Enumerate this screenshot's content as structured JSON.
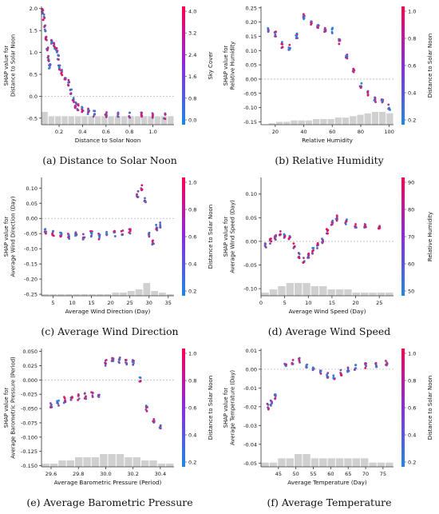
{
  "colors": {
    "low": "#1e88e5",
    "high": "#ff0052",
    "hist": "#d0d0d0",
    "axis": "#333333",
    "text": "#111111"
  },
  "figure_captions": [
    "(a) Distance to Solar Noon",
    "(b) Relative Humidity",
    "(c) Average Wind Direction",
    "(d) Average Wind Speed",
    "(e) Average Barometric Pressure",
    "(f) Average Temperature"
  ],
  "chart_data": [
    {
      "type": "scatter",
      "caption": "(a) Distance to Solar Noon",
      "xlabel": "Distance to Solar Noon",
      "ylabel": [
        "SHAP value for",
        "Distance to Solar Noon"
      ],
      "colorbar_label": "Sky Cover",
      "colorbar_ticks": [
        "0.0",
        "0.8",
        "1.6",
        "2.4",
        "3.2",
        "4.0"
      ],
      "xlim": [
        0.05,
        1.18
      ],
      "ylim": [
        -0.65,
        2.05
      ],
      "xticks": [
        0.2,
        0.4,
        0.6,
        0.8,
        1.0
      ],
      "xtick_labels": [
        "0.2",
        "0.4",
        "0.6",
        "0.8",
        "1.0"
      ],
      "yticks": [
        -0.5,
        0.0,
        0.5,
        1.0,
        1.5,
        2.0
      ],
      "ytick_labels": [
        "-0.5",
        "0.0",
        "0.5",
        "1.0",
        "1.5",
        "2.0"
      ],
      "series_points": [
        [
          0.06,
          1.95
        ],
        [
          0.07,
          1.8
        ],
        [
          0.08,
          1.55
        ],
        [
          0.09,
          1.3
        ],
        [
          0.1,
          1.05
        ],
        [
          0.11,
          0.85
        ],
        [
          0.12,
          0.7
        ],
        [
          0.14,
          1.25
        ],
        [
          0.16,
          1.15
        ],
        [
          0.18,
          1.05
        ],
        [
          0.19,
          0.9
        ],
        [
          0.2,
          0.65
        ],
        [
          0.22,
          0.55
        ],
        [
          0.25,
          0.45
        ],
        [
          0.28,
          0.3
        ],
        [
          0.3,
          0.1
        ],
        [
          0.32,
          -0.1
        ],
        [
          0.34,
          -0.2
        ],
        [
          0.36,
          -0.25
        ],
        [
          0.4,
          -0.3
        ],
        [
          0.45,
          -0.35
        ],
        [
          0.5,
          -0.4
        ],
        [
          0.6,
          -0.42
        ],
        [
          0.7,
          -0.43
        ],
        [
          0.8,
          -0.44
        ],
        [
          0.9,
          -0.44
        ],
        [
          1.0,
          -0.45
        ],
        [
          1.1,
          -0.45
        ]
      ],
      "hist": [
        3,
        2,
        2,
        2,
        2,
        2,
        2,
        2,
        2,
        2,
        2,
        2,
        2,
        2,
        2,
        2,
        2,
        2,
        2,
        2
      ]
    },
    {
      "type": "scatter",
      "caption": "(b) Relative Humidity",
      "xlabel": "Relative Humidity",
      "ylabel": [
        "SHAP value for",
        "Relative Humidity"
      ],
      "colorbar_label": "Distance to Solar Noon",
      "colorbar_ticks": [
        "0.2",
        "0.4",
        "0.6",
        "0.8",
        "1.0"
      ],
      "xlim": [
        10,
        103
      ],
      "ylim": [
        -0.16,
        0.255
      ],
      "xticks": [
        20,
        40,
        60,
        80,
        100
      ],
      "xtick_labels": [
        "20",
        "40",
        "60",
        "80",
        "100"
      ],
      "yticks": [
        -0.15,
        -0.1,
        -0.05,
        0.0,
        0.05,
        0.1,
        0.15,
        0.2,
        0.25
      ],
      "ytick_labels": [
        "-0.15",
        "-0.10",
        "-0.05",
        "0.00",
        "0.05",
        "0.10",
        "0.15",
        "0.20",
        "0.25"
      ],
      "series_points": [
        [
          15,
          0.17
        ],
        [
          20,
          0.16
        ],
        [
          25,
          0.12
        ],
        [
          30,
          0.11
        ],
        [
          35,
          0.15
        ],
        [
          40,
          0.22
        ],
        [
          45,
          0.2
        ],
        [
          50,
          0.18
        ],
        [
          55,
          0.17
        ],
        [
          60,
          0.17
        ],
        [
          65,
          0.13
        ],
        [
          70,
          0.08
        ],
        [
          75,
          0.03
        ],
        [
          80,
          -0.02
        ],
        [
          85,
          -0.05
        ],
        [
          90,
          -0.07
        ],
        [
          95,
          -0.08
        ],
        [
          100,
          -0.1
        ]
      ],
      "hist": [
        0,
        1,
        2,
        2,
        3,
        3,
        3,
        4,
        4,
        4,
        5,
        5,
        6,
        7,
        8,
        9,
        9,
        8
      ]
    },
    {
      "type": "scatter",
      "caption": "(c) Average Wind Direction",
      "xlabel": "Average Wind Direction (Day)",
      "ylabel": [
        "SHAP value for",
        "Average Wind Direction (Day)"
      ],
      "colorbar_label": "Distance to Solar Noon",
      "colorbar_ticks": [
        "0.2",
        "0.4",
        "0.6",
        "0.8",
        "1.0"
      ],
      "xlim": [
        2,
        36.5
      ],
      "ylim": [
        -0.255,
        0.135
      ],
      "xticks": [
        5,
        10,
        15,
        20,
        25,
        30,
        35
      ],
      "xtick_labels": [
        "5",
        "10",
        "15",
        "20",
        "25",
        "30",
        "35"
      ],
      "yticks": [
        -0.25,
        -0.2,
        -0.15,
        -0.1,
        -0.05,
        0.0,
        0.05,
        0.1
      ],
      "ytick_labels": [
        "-0.25",
        "-0.20",
        "-0.15",
        "-0.10",
        "-0.05",
        "0.00",
        "0.05",
        "0.10"
      ],
      "series_points": [
        [
          3,
          -0.04
        ],
        [
          5,
          -0.05
        ],
        [
          7,
          -0.05
        ],
        [
          9,
          -0.06
        ],
        [
          11,
          -0.05
        ],
        [
          13,
          -0.06
        ],
        [
          15,
          -0.05
        ],
        [
          17,
          -0.06
        ],
        [
          19,
          -0.05
        ],
        [
          21,
          -0.05
        ],
        [
          23,
          -0.05
        ],
        [
          25,
          -0.04
        ],
        [
          27,
          0.08
        ],
        [
          28,
          0.1
        ],
        [
          29,
          0.06
        ],
        [
          30,
          -0.05
        ],
        [
          31,
          -0.08
        ],
        [
          32,
          -0.03
        ],
        [
          33,
          -0.02
        ]
      ],
      "hist": [
        1,
        1,
        1,
        1,
        1,
        1,
        1,
        1,
        1,
        2,
        2,
        3,
        4,
        8,
        3,
        2,
        1
      ]
    },
    {
      "type": "scatter",
      "caption": "(d) Average Wind Speed",
      "xlabel": "Average Wind Speed (Day)",
      "ylabel": [
        "SHAP value for",
        "Average Wind Speed (Day)"
      ],
      "colorbar_label": "Relative Humidity",
      "colorbar_ticks": [
        "50",
        "60",
        "70",
        "80",
        "90"
      ],
      "xlim": [
        0,
        28
      ],
      "ylim": [
        -0.115,
        0.135
      ],
      "xticks": [
        0,
        5,
        10,
        15,
        20,
        25
      ],
      "xtick_labels": [
        "0",
        "5",
        "10",
        "15",
        "20",
        "25"
      ],
      "yticks": [
        -0.1,
        -0.05,
        0.0,
        0.05,
        0.1
      ],
      "ytick_labels": [
        "-0.10",
        "-0.05",
        "0.00",
        "0.05",
        "0.10"
      ],
      "series_points": [
        [
          1,
          -0.01
        ],
        [
          2,
          0.0
        ],
        [
          3,
          0.01
        ],
        [
          4,
          0.015
        ],
        [
          5,
          0.012
        ],
        [
          6,
          0.005
        ],
        [
          7,
          -0.01
        ],
        [
          8,
          -0.03
        ],
        [
          9,
          -0.04
        ],
        [
          10,
          -0.03
        ],
        [
          11,
          -0.02
        ],
        [
          12,
          -0.01
        ],
        [
          13,
          0.0
        ],
        [
          14,
          0.02
        ],
        [
          15,
          0.04
        ],
        [
          16,
          0.05
        ],
        [
          18,
          0.04
        ],
        [
          20,
          0.03
        ],
        [
          22,
          0.035
        ],
        [
          25,
          0.03
        ]
      ],
      "hist": [
        1,
        2,
        3,
        4,
        4,
        4,
        3,
        3,
        2,
        2,
        2,
        1,
        1,
        1,
        1,
        1
      ]
    },
    {
      "type": "scatter",
      "caption": "(e) Average Barometric Pressure",
      "xlabel": "Average Barometric Pressure (Period)",
      "ylabel": [
        "SHAP value for",
        "Average Barometric Pressure (Period)"
      ],
      "colorbar_label": "Distance to Solar Noon",
      "colorbar_ticks": [
        "0.2",
        "0.4",
        "0.6",
        "0.8",
        "1.0"
      ],
      "xlim": [
        29.53,
        30.5
      ],
      "ylim": [
        -0.152,
        0.055
      ],
      "xticks": [
        29.6,
        29.8,
        30.0,
        30.2,
        30.4
      ],
      "xtick_labels": [
        "29.6",
        "29.8",
        "30.0",
        "30.2",
        "30.4"
      ],
      "yticks": [
        -0.15,
        -0.125,
        -0.1,
        -0.075,
        -0.05,
        -0.025,
        0.0,
        0.025,
        0.05
      ],
      "ytick_labels": [
        "-0.150",
        "-0.125",
        "-0.100",
        "-0.075",
        "-0.050",
        "-0.025",
        "0.000",
        "0.025",
        "0.050"
      ],
      "series_points": [
        [
          29.6,
          -0.045
        ],
        [
          29.65,
          -0.04
        ],
        [
          29.7,
          -0.035
        ],
        [
          29.75,
          -0.03
        ],
        [
          29.8,
          -0.03
        ],
        [
          29.85,
          -0.028
        ],
        [
          29.9,
          -0.025
        ],
        [
          29.95,
          -0.025
        ],
        [
          30.0,
          0.03
        ],
        [
          30.05,
          0.035
        ],
        [
          30.1,
          0.035
        ],
        [
          30.15,
          0.03
        ],
        [
          30.2,
          0.03
        ],
        [
          30.25,
          0.0
        ],
        [
          30.3,
          -0.05
        ],
        [
          30.35,
          -0.07
        ],
        [
          30.4,
          -0.08
        ]
      ],
      "hist": [
        1,
        1,
        2,
        2,
        3,
        3,
        3,
        4,
        4,
        4,
        3,
        3,
        2,
        2,
        1,
        1
      ]
    },
    {
      "type": "scatter",
      "caption": "(f) Average Temperature",
      "xlabel": "Average Temperature (Day)",
      "ylabel": [
        "SHAP value for",
        "Average Temperature (Day)"
      ],
      "colorbar_label": "Distance to Solar Noon",
      "colorbar_ticks": [
        "0.2",
        "0.4",
        "0.6",
        "0.8",
        "1.0"
      ],
      "xlim": [
        40,
        78
      ],
      "ylim": [
        -0.052,
        0.011
      ],
      "xticks": [
        45,
        50,
        55,
        60,
        65,
        70,
        75
      ],
      "xtick_labels": [
        "45",
        "50",
        "55",
        "60",
        "65",
        "70",
        "75"
      ],
      "yticks": [
        -0.05,
        -0.04,
        -0.03,
        -0.02,
        -0.01,
        0.0,
        0.01
      ],
      "ytick_labels": [
        "-0.05",
        "-0.04",
        "-0.03",
        "-0.02",
        "-0.01",
        "0.00",
        "0.01"
      ],
      "series_points": [
        [
          42,
          -0.02
        ],
        [
          43,
          -0.018
        ],
        [
          44,
          -0.015
        ],
        [
          47,
          0.002
        ],
        [
          49,
          0.004
        ],
        [
          51,
          0.005
        ],
        [
          53,
          0.002
        ],
        [
          55,
          0.0
        ],
        [
          57,
          -0.002
        ],
        [
          59,
          -0.003
        ],
        [
          61,
          -0.004
        ],
        [
          63,
          -0.002
        ],
        [
          65,
          0.0
        ],
        [
          67,
          0.001
        ],
        [
          70,
          0.002
        ],
        [
          73,
          0.002
        ],
        [
          76,
          0.003
        ]
      ],
      "hist": [
        1,
        1,
        2,
        2,
        3,
        3,
        2,
        2,
        2,
        2,
        2,
        2,
        2,
        1,
        1,
        1
      ]
    }
  ]
}
